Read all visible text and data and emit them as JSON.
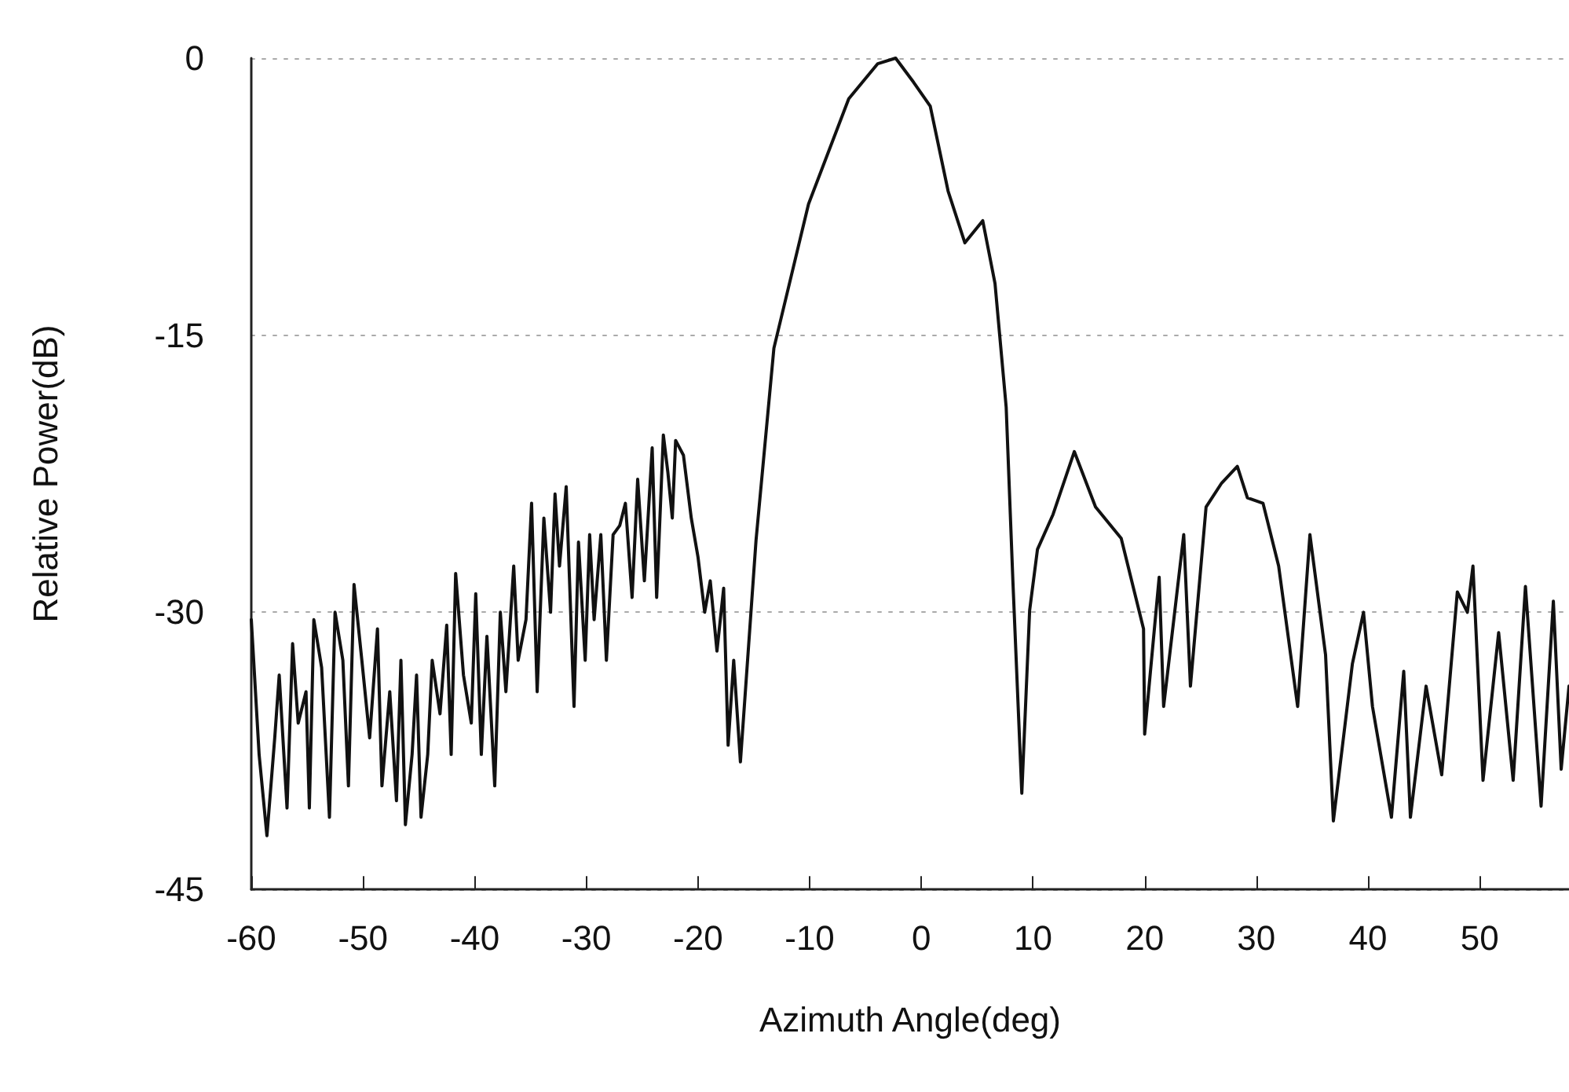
{
  "chart_data": {
    "type": "line",
    "xlabel": "Azimuth Angle(deg)",
    "ylabel": "Relative Power(dB)",
    "xlim": [
      -60,
      58
    ],
    "xticks": [
      -60,
      -50,
      -40,
      -30,
      -20,
      -10,
      0,
      10,
      20,
      30,
      40,
      50
    ],
    "ylim": [
      -45,
      0
    ],
    "yticks": [
      -45,
      -30,
      -15,
      0
    ],
    "grid": "y",
    "marker": "none",
    "line_style": "solid",
    "series": [
      {
        "color": "#111111",
        "x": [
          -60,
          -59.3,
          -58.6,
          -57.9,
          -57.5,
          -56.8,
          -56.3,
          -55.8,
          -55.1,
          -54.8,
          -54.4,
          -53.7,
          -53.0,
          -52.5,
          -51.8,
          -51.3,
          -50.8,
          -50.1,
          -49.4,
          -48.7,
          -48.3,
          -47.6,
          -47.0,
          -46.6,
          -46.2,
          -45.6,
          -45.2,
          -44.8,
          -44.2,
          -43.8,
          -43.1,
          -42.5,
          -42.1,
          -41.7,
          -41.0,
          -40.3,
          -39.9,
          -39.4,
          -38.9,
          -38.2,
          -37.7,
          -37.2,
          -36.5,
          -36.1,
          -35.4,
          -34.9,
          -34.4,
          -33.8,
          -33.2,
          -32.8,
          -32.4,
          -31.8,
          -31.1,
          -30.7,
          -30.1,
          -29.7,
          -29.3,
          -28.7,
          -28.2,
          -27.6,
          -27.0,
          -26.5,
          -25.9,
          -25.4,
          -24.8,
          -24.1,
          -23.7,
          -23.1,
          -22.7,
          -22.3,
          -22.0,
          -21.3,
          -20.6,
          -20.0,
          -19.4,
          -18.9,
          -18.3,
          -17.7,
          -17.3,
          -16.8,
          -16.2,
          -14.8,
          -13.2,
          -10.1,
          -6.5,
          -3.9,
          -2.3,
          -0.7,
          0.8,
          2.4,
          3.9,
          5.5,
          6.6,
          7.6,
          8.2,
          9.0,
          9.7,
          10.4,
          11.8,
          13.7,
          15.6,
          17.9,
          19.9,
          20.0,
          21.3,
          21.7,
          23.5,
          24.1,
          25.5,
          26.9,
          28.3,
          29.2,
          30.6,
          32.0,
          33.7,
          34.8,
          36.2,
          36.9,
          38.6,
          39.6,
          40.4,
          42.1,
          43.2,
          43.8,
          45.2,
          46.6,
          48.0,
          48.9,
          49.4,
          50.3,
          51.7,
          53.0,
          54.1,
          55.5,
          56.6,
          57.3,
          58.0
        ],
        "values": [
          -30.4,
          -37.7,
          -42.1,
          -36.8,
          -33.4,
          -40.6,
          -31.7,
          -36.0,
          -34.3,
          -40.6,
          -30.4,
          -33.0,
          -41.1,
          -30.0,
          -32.6,
          -39.4,
          -28.5,
          -32.6,
          -36.8,
          -30.9,
          -39.4,
          -34.3,
          -40.2,
          -32.6,
          -41.5,
          -37.7,
          -33.4,
          -41.1,
          -37.7,
          -32.6,
          -35.5,
          -30.7,
          -37.7,
          -27.9,
          -33.4,
          -36.0,
          -29.0,
          -37.7,
          -31.3,
          -39.4,
          -30.0,
          -34.3,
          -27.5,
          -32.6,
          -30.4,
          -24.1,
          -34.3,
          -24.9,
          -30.0,
          -23.6,
          -27.5,
          -23.2,
          -35.1,
          -26.2,
          -32.6,
          -25.8,
          -30.4,
          -25.8,
          -32.6,
          -25.8,
          -25.3,
          -24.1,
          -29.2,
          -22.8,
          -28.3,
          -21.1,
          -29.2,
          -20.4,
          -22.4,
          -24.9,
          -20.7,
          -21.5,
          -24.9,
          -27.0,
          -30.0,
          -28.3,
          -32.1,
          -28.7,
          -37.2,
          -32.6,
          -38.1,
          -26.1,
          -15.7,
          -7.9,
          -2.2,
          -0.3,
          0,
          -1.3,
          -2.6,
          -7.2,
          -10.0,
          -8.8,
          -12.2,
          -18.9,
          -28.3,
          -39.8,
          -29.9,
          -26.6,
          -24.7,
          -21.3,
          -24.3,
          -26.0,
          -30.9,
          -36.6,
          -28.1,
          -35.1,
          -25.8,
          -34.0,
          -24.3,
          -23.0,
          -22.1,
          -23.8,
          -24.1,
          -27.5,
          -35.1,
          -25.8,
          -32.3,
          -41.3,
          -32.8,
          -30.0,
          -35.1,
          -41.1,
          -33.2,
          -41.1,
          -34.0,
          -38.8,
          -28.9,
          -30.0,
          -27.5,
          -39.1,
          -31.1,
          -39.1,
          -28.6,
          -40.5,
          -29.4,
          -38.5,
          -34.0
        ]
      }
    ]
  }
}
